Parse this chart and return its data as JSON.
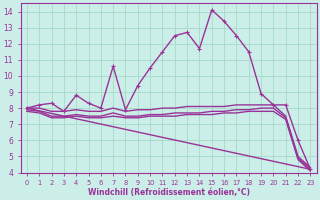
{
  "bg_color": "#cceee8",
  "grid_color": "#aaddcc",
  "line_color": "#993399",
  "xlabel": "Windchill (Refroidissement éolien,°C)",
  "xlim": [
    -0.5,
    23.5
  ],
  "ylim": [
    4,
    14.5
  ],
  "xticks": [
    0,
    1,
    2,
    3,
    4,
    5,
    6,
    7,
    8,
    9,
    10,
    11,
    12,
    13,
    14,
    15,
    16,
    17,
    18,
    19,
    20,
    21,
    22,
    23
  ],
  "yticks": [
    4,
    5,
    6,
    7,
    8,
    9,
    10,
    11,
    12,
    13,
    14
  ],
  "series": [
    {
      "x": [
        0,
        1,
        2,
        3,
        4,
        5,
        6,
        7,
        8,
        9,
        10,
        11,
        12,
        13,
        14,
        15,
        16,
        17,
        18,
        19,
        20,
        21,
        22,
        23
      ],
      "y": [
        8.0,
        8.2,
        8.3,
        7.8,
        8.8,
        8.3,
        8.0,
        10.6,
        7.9,
        9.4,
        10.5,
        11.5,
        12.5,
        12.7,
        11.7,
        14.1,
        13.4,
        12.5,
        11.5,
        8.9,
        8.2,
        8.2,
        6.0,
        4.2
      ],
      "marker": true,
      "linewidth": 1.0
    },
    {
      "x": [
        0,
        1,
        2,
        3,
        4,
        5,
        6,
        7,
        8,
        9,
        10,
        11,
        12,
        13,
        14,
        15,
        16,
        17,
        18,
        19,
        20,
        21,
        22,
        23
      ],
      "y": [
        8.0,
        8.0,
        7.8,
        7.8,
        7.9,
        7.8,
        7.8,
        8.0,
        7.8,
        7.9,
        7.9,
        8.0,
        8.0,
        8.1,
        8.1,
        8.1,
        8.1,
        8.2,
        8.2,
        8.2,
        8.2,
        7.5,
        5.0,
        4.3
      ],
      "marker": false,
      "linewidth": 1.0
    },
    {
      "x": [
        0,
        1,
        2,
        3,
        4,
        5,
        6,
        7,
        8,
        9,
        10,
        11,
        12,
        13,
        14,
        15,
        16,
        17,
        18,
        19,
        20,
        21,
        22,
        23
      ],
      "y": [
        7.9,
        7.8,
        7.5,
        7.5,
        7.6,
        7.5,
        7.5,
        7.7,
        7.5,
        7.5,
        7.6,
        7.6,
        7.7,
        7.7,
        7.7,
        7.8,
        7.8,
        7.9,
        7.9,
        8.0,
        8.0,
        7.4,
        4.9,
        4.2
      ],
      "marker": false,
      "linewidth": 1.0
    },
    {
      "x": [
        0,
        1,
        2,
        3,
        4,
        5,
        6,
        7,
        8,
        9,
        10,
        11,
        12,
        13,
        14,
        15,
        16,
        17,
        18,
        19,
        20,
        21,
        22,
        23
      ],
      "y": [
        7.8,
        7.7,
        7.4,
        7.4,
        7.5,
        7.4,
        7.4,
        7.5,
        7.4,
        7.4,
        7.5,
        7.5,
        7.5,
        7.6,
        7.6,
        7.6,
        7.7,
        7.7,
        7.8,
        7.8,
        7.8,
        7.3,
        4.8,
        4.1
      ],
      "marker": false,
      "linewidth": 1.0
    },
    {
      "x": [
        0,
        23
      ],
      "y": [
        8.0,
        4.2
      ],
      "marker": false,
      "linewidth": 1.0
    }
  ]
}
